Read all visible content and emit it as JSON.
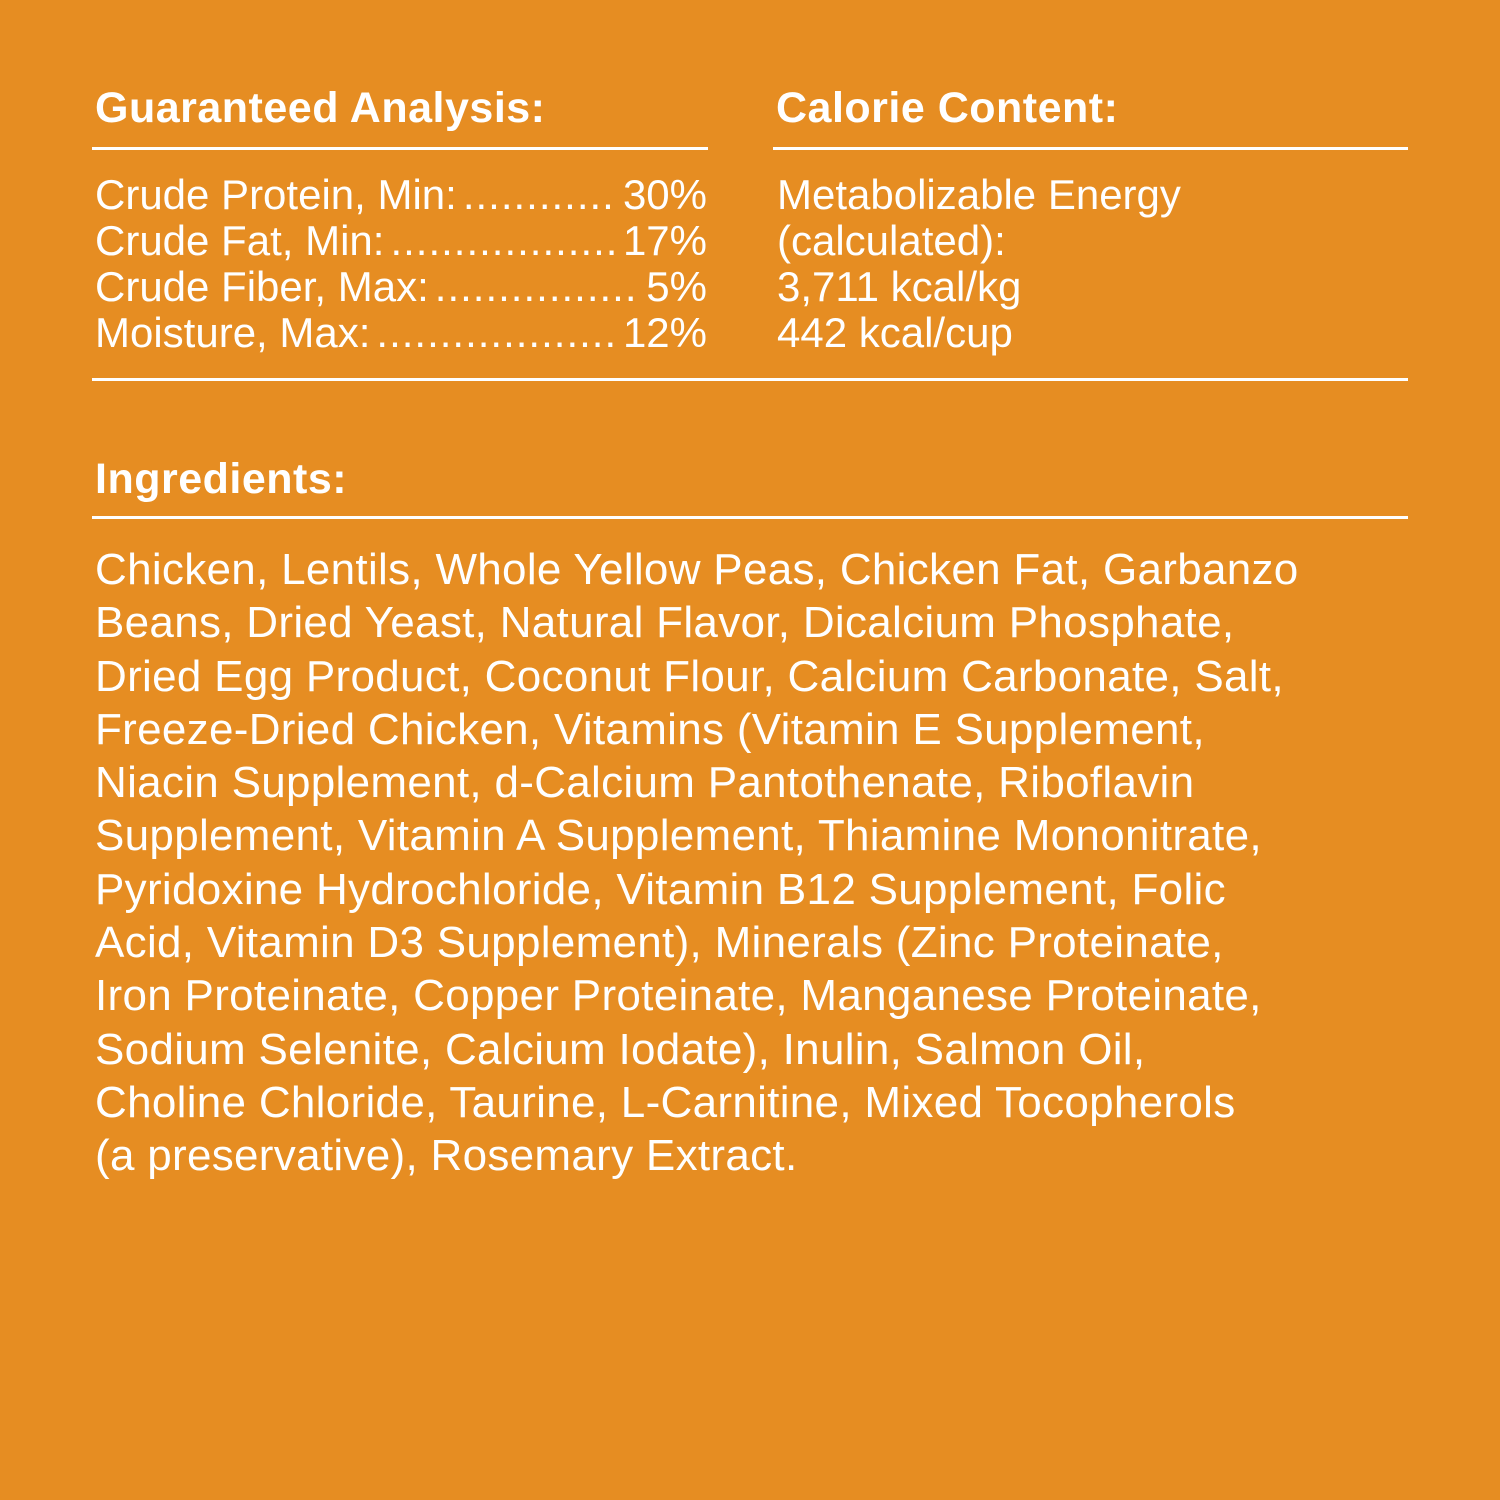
{
  "analysis": {
    "heading": "Guaranteed Analysis:",
    "rows": [
      {
        "label": "Crude Protein, Min:",
        "value": "30%"
      },
      {
        "label": "Crude Fat, Min:",
        "value": "17%"
      },
      {
        "label": "Crude Fiber, Max:",
        "value": "5%"
      },
      {
        "label": "Moisture, Max:",
        "value": "12%"
      }
    ]
  },
  "calorie": {
    "heading": "Calorie Content:",
    "lines": [
      "Metabolizable Energy",
      "(calculated):",
      "3,711 kcal/kg",
      "442 kcal/cup"
    ]
  },
  "ingredients": {
    "heading": "Ingredients:",
    "lines": [
      "Chicken, Lentils, Whole Yellow Peas, Chicken Fat, Garbanzo",
      "Beans, Dried Yeast, Natural Flavor, Dicalcium Phosphate,",
      "Dried Egg Product, Coconut Flour, Calcium Carbonate, Salt,",
      "Freeze-Dried Chicken, Vitamins (Vitamin E Supplement,",
      "Niacin Supplement, d-Calcium Pantothenate, Riboflavin",
      "Supplement, Vitamin A Supplement, Thiamine Mononitrate,",
      "Pyridoxine Hydrochloride, Vitamin B12 Supplement, Folic",
      "Acid, Vitamin D3 Supplement), Minerals (Zinc Proteinate,",
      "Iron Proteinate, Copper Proteinate, Manganese Proteinate,",
      "Sodium Selenite, Calcium Iodate), Inulin, Salmon Oil,",
      "Choline Chloride, Taurine, L-Carnitine, Mixed Tocopherols",
      "(a preservative), Rosemary Extract."
    ]
  },
  "colors": {
    "background": "#E68D22",
    "text": "#FFFFFF"
  }
}
